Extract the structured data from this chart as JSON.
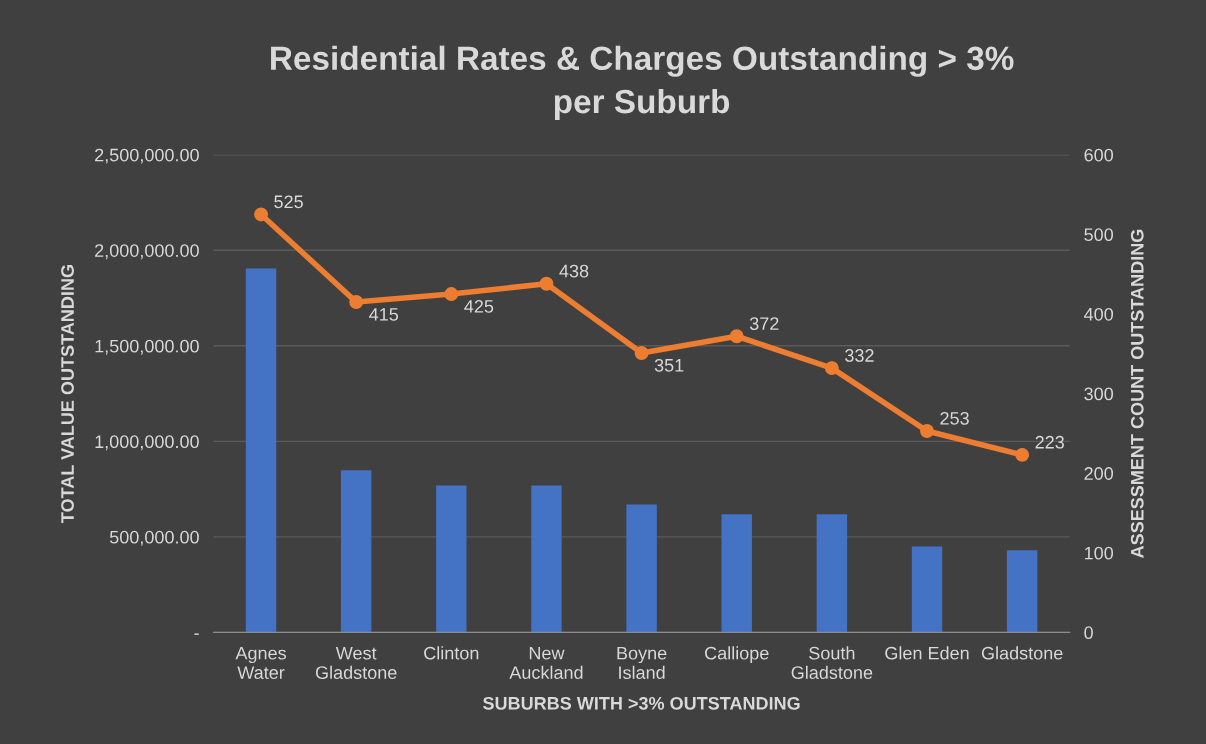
{
  "chart_data": {
    "type": "bar",
    "title": "Residential Rates & Charges Outstanding > 3%\nper Suburb",
    "xlabel": "SUBURBS WITH >3% OUTSTANDING",
    "ylabel": "TOTAL VALUE OUTSTANDING",
    "y2label": "ASSESSMENT COUNT OUTSTANDING",
    "categories": [
      "Agnes\nWater",
      "West\nGladstone",
      "Clinton",
      "New\nAuckland",
      "Boyne\nIsland",
      "Calliope",
      "South\nGladstone",
      "Glen Eden",
      "Gladstone"
    ],
    "series": [
      {
        "color": "#4472c4",
        "values": [
          1904000,
          849000,
          769000,
          769000,
          670000,
          619000,
          619000,
          450000,
          430000
        ]
      },
      {
        "type": "line",
        "axis": "y2",
        "color": "#ed7d31",
        "marker": "circle",
        "values": [
          525,
          415,
          425,
          438,
          351,
          372,
          332,
          253,
          223
        ],
        "value_labels": [
          "525",
          "415",
          "425",
          "438",
          "351",
          "372",
          "332",
          "253",
          "223"
        ]
      }
    ],
    "ylim": [
      0,
      2500000
    ],
    "yticks": [
      {
        "value": 0,
        "label": "-"
      },
      {
        "value": 500000,
        "label": "500,000.00"
      },
      {
        "value": 1000000,
        "label": "1,000,000.00"
      },
      {
        "value": 1500000,
        "label": "1,500,000.00"
      },
      {
        "value": 2000000,
        "label": "2,000,000.00"
      },
      {
        "value": 2500000,
        "label": "2,500,000.00"
      }
    ],
    "y2lim": [
      0,
      600
    ],
    "y2ticks": [
      0,
      100,
      200,
      300,
      400,
      500,
      600
    ],
    "grid": "y"
  }
}
